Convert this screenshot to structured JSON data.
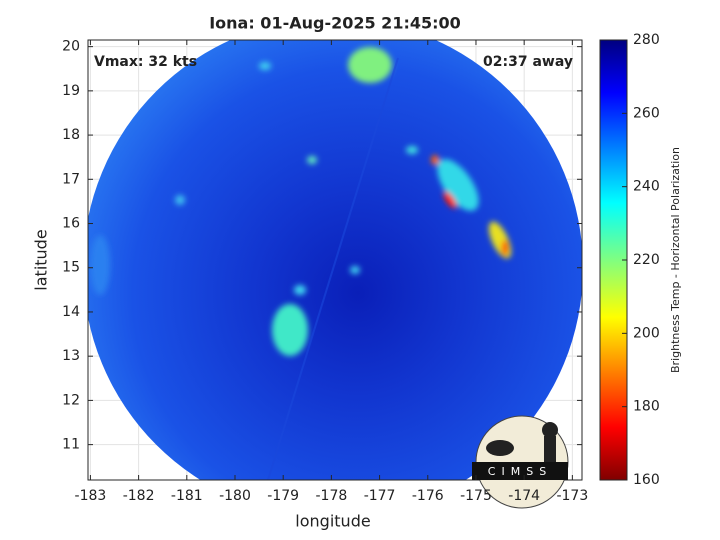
{
  "chart_data": {
    "type": "image",
    "title": "Iona: 01-Aug-2025 21:45:00",
    "annotations": [
      "Vmax: 32 kts",
      "02:37 away"
    ],
    "xlabel": "longitude",
    "ylabel": "latitude",
    "xlim": [
      -183.05,
      -172.8
    ],
    "xticks": [
      -183,
      -182,
      -181,
      -180,
      -179,
      -178,
      -177,
      -176,
      -175,
      -174,
      -173
    ],
    "ylim": [
      10.2,
      20.15
    ],
    "yticks": [
      11,
      12,
      13,
      14,
      15,
      16,
      17,
      18,
      19,
      20
    ],
    "grid": true,
    "colorbar": {
      "label": "Brightness Temp - Horizontal Polarization",
      "lim": [
        160,
        280
      ],
      "ticks": [
        160,
        180,
        200,
        220,
        240,
        260,
        280
      ]
    },
    "logo": "CIMSS"
  }
}
